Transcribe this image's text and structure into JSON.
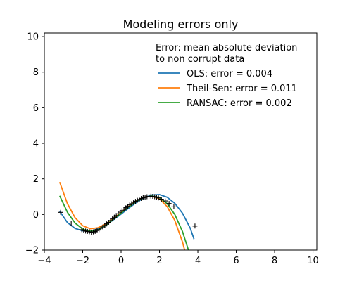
{
  "chart_data": {
    "type": "line",
    "title": "Modeling errors only",
    "xlabel": "",
    "ylabel": "",
    "xlim": [
      -4,
      10.2
    ],
    "ylim": [
      -2,
      10.2
    ],
    "x_ticks": [
      -4,
      -2,
      0,
      2,
      4,
      6,
      8,
      10
    ],
    "y_ticks": [
      -2,
      0,
      2,
      4,
      6,
      8,
      10
    ],
    "grid": false,
    "legend": {
      "title": "Error: mean absolute deviation\n to non corrupt data",
      "placement": "upper-right"
    },
    "series": [
      {
        "name": "OLS: error = 0.004",
        "color": "#1f77b4",
        "x": [
          -3.2,
          -2.8,
          -2.4,
          -2.0,
          -1.6,
          -1.2,
          -0.8,
          -0.4,
          0.0,
          0.4,
          0.8,
          1.2,
          1.6,
          2.0,
          2.4,
          2.8,
          3.2,
          3.6,
          3.8
        ],
        "y": [
          0.18,
          -0.45,
          -0.78,
          -0.92,
          -0.93,
          -0.82,
          -0.6,
          -0.3,
          0.02,
          0.36,
          0.68,
          0.94,
          1.1,
          1.12,
          0.97,
          0.63,
          0.07,
          -0.76,
          -1.38
        ]
      },
      {
        "name": "Theil-Sen: error = 0.011",
        "color": "#ff7f0e",
        "x": [
          -3.2,
          -2.8,
          -2.4,
          -2.0,
          -1.6,
          -1.2,
          -0.8,
          -0.4,
          0.0,
          0.4,
          0.8,
          1.2,
          1.6,
          2.0,
          2.4,
          2.8,
          3.2,
          3.4
        ],
        "y": [
          1.82,
          0.62,
          -0.18,
          -0.63,
          -0.8,
          -0.74,
          -0.53,
          -0.22,
          0.12,
          0.46,
          0.76,
          0.97,
          1.03,
          0.88,
          0.45,
          -0.34,
          -1.55,
          -2.35
        ]
      },
      {
        "name": "RANSAC: error = 0.002",
        "color": "#2ca02c",
        "x": [
          -3.2,
          -2.8,
          -2.4,
          -2.0,
          -1.6,
          -1.2,
          -0.8,
          -0.4,
          0.0,
          0.4,
          0.8,
          1.2,
          1.6,
          2.0,
          2.4,
          2.8,
          3.2,
          3.6
        ],
        "y": [
          1.05,
          0.13,
          -0.48,
          -0.82,
          -0.94,
          -0.86,
          -0.61,
          -0.27,
          0.08,
          0.43,
          0.74,
          0.96,
          1.04,
          0.95,
          0.61,
          0.0,
          -0.96,
          -2.3
        ]
      }
    ],
    "scatter": {
      "marker": "+",
      "color": "#000000",
      "points": [
        [
          -3.15,
          0.12
        ],
        [
          -2.6,
          -0.48
        ],
        [
          -2.05,
          -0.85
        ],
        [
          -1.95,
          -0.9
        ],
        [
          -1.85,
          -0.93
        ],
        [
          -1.75,
          -0.95
        ],
        [
          -1.65,
          -0.97
        ],
        [
          -1.55,
          -1.0
        ],
        [
          -1.45,
          -0.98
        ],
        [
          -1.35,
          -0.95
        ],
        [
          -1.25,
          -0.9
        ],
        [
          -1.15,
          -0.85
        ],
        [
          -1.05,
          -0.78
        ],
        [
          -0.95,
          -0.7
        ],
        [
          -0.85,
          -0.62
        ],
        [
          -0.75,
          -0.53
        ],
        [
          -0.65,
          -0.44
        ],
        [
          -0.55,
          -0.34
        ],
        [
          -0.45,
          -0.25
        ],
        [
          -0.35,
          -0.15
        ],
        [
          -0.25,
          -0.06
        ],
        [
          -0.15,
          0.04
        ],
        [
          -0.05,
          0.13
        ],
        [
          0.05,
          0.22
        ],
        [
          0.15,
          0.3
        ],
        [
          0.25,
          0.38
        ],
        [
          0.35,
          0.46
        ],
        [
          0.45,
          0.54
        ],
        [
          0.55,
          0.61
        ],
        [
          0.65,
          0.68
        ],
        [
          0.75,
          0.74
        ],
        [
          0.85,
          0.8
        ],
        [
          0.95,
          0.85
        ],
        [
          1.05,
          0.9
        ],
        [
          1.15,
          0.94
        ],
        [
          1.25,
          0.97
        ],
        [
          1.35,
          1.0
        ],
        [
          1.45,
          1.02
        ],
        [
          1.55,
          1.03
        ],
        [
          1.65,
          1.02
        ],
        [
          1.75,
          1.0
        ],
        [
          1.85,
          0.97
        ],
        [
          1.95,
          0.93
        ],
        [
          2.1,
          0.86
        ],
        [
          2.3,
          0.76
        ],
        [
          2.5,
          0.62
        ],
        [
          2.75,
          0.43
        ],
        [
          3.85,
          -0.65
        ]
      ]
    }
  }
}
